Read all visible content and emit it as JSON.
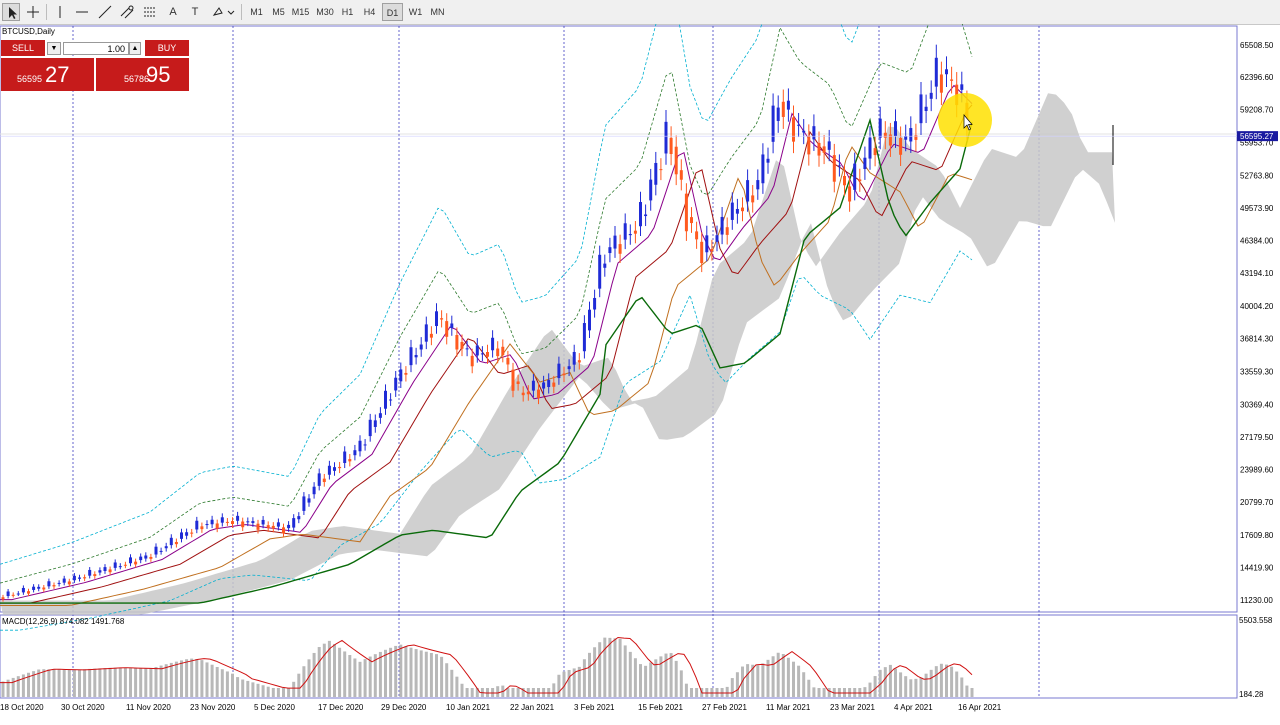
{
  "toolbar": {
    "tools": [
      "cursor-icon",
      "crosshair-icon",
      "vertical-line-icon",
      "horizontal-line-icon",
      "trendline-icon",
      "channel-icon",
      "fibonacci-icon",
      "text-icon",
      "text-label-icon",
      "shapes-icon"
    ],
    "text_tool": "A",
    "text_label_tool": "T",
    "timeframes": [
      "M1",
      "M5",
      "M15",
      "M30",
      "H1",
      "H4",
      "D1",
      "W1",
      "MN"
    ],
    "active_timeframe": "D1"
  },
  "chart": {
    "symbol_label": "BTCUSD,Daily",
    "current_price_label": "56595.27",
    "price_axis": [
      "65508.50",
      "62396.60",
      "59208.70",
      "55953.70",
      "52763.80",
      "49573.90",
      "46384.00",
      "43194.10",
      "40004.20",
      "36814.30",
      "33559.30",
      "30369.40",
      "27179.50",
      "23989.60",
      "20799.70",
      "17609.80",
      "14419.90",
      "11230.00"
    ],
    "price_min": 11230,
    "price_max": 65508.5,
    "x_axis": [
      "18 Oct 2020",
      "30 Oct 2020",
      "11 Nov 2020",
      "23 Nov 2020",
      "5 Dec 2020",
      "17 Dec 2020",
      "29 Dec 2020",
      "10 Jan 2021",
      "22 Jan 2021",
      "3 Feb 2021",
      "15 Feb 2021",
      "27 Feb 2021",
      "11 Mar 2021",
      "23 Mar 2021",
      "4 Apr 2021",
      "16 Apr 2021"
    ],
    "up_color": "#1f2bd6",
    "down_color": "#ff5a1f",
    "highlight_color": "#ffe000"
  },
  "trade_panel": {
    "sell_label": "SELL",
    "buy_label": "BUY",
    "lot": "1.00",
    "sell_small": "56595",
    "sell_big": "27",
    "buy_small": "56786",
    "buy_big": "95"
  },
  "macd": {
    "label": "MACD(12,26,9) 874.082 1491.768",
    "axis_top": "5503.558",
    "axis_bottom": "184.28"
  }
}
